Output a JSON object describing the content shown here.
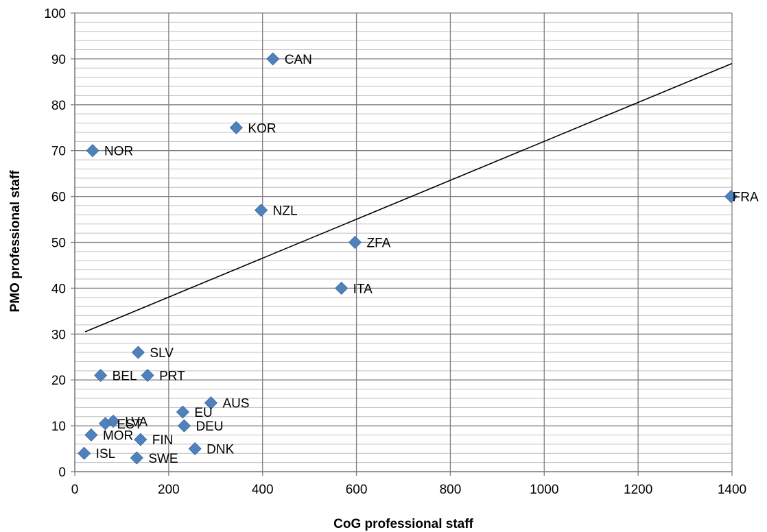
{
  "chart_data": {
    "type": "scatter",
    "xlabel": "CoG professional staff",
    "ylabel": "PMO professional staff",
    "xlim": [
      0,
      1400
    ],
    "ylim": [
      0,
      100
    ],
    "x_ticks": [
      0,
      200,
      400,
      600,
      800,
      1000,
      1200,
      1400
    ],
    "y_ticks": [
      0,
      10,
      20,
      30,
      40,
      50,
      60,
      70,
      80,
      90,
      100
    ],
    "minor_y_step": 2,
    "grid": true,
    "marker_color": "#4F81BD",
    "points": [
      {
        "label": "CAN",
        "x": 422,
        "y": 90
      },
      {
        "label": "KOR",
        "x": 344,
        "y": 75
      },
      {
        "label": "NOR",
        "x": 38,
        "y": 70
      },
      {
        "label": "FRA",
        "x": 1398,
        "y": 60
      },
      {
        "label": "NZL",
        "x": 397,
        "y": 57
      },
      {
        "label": "ZFA",
        "x": 597,
        "y": 50
      },
      {
        "label": "ITA",
        "x": 568,
        "y": 40
      },
      {
        "label": "SLV",
        "x": 135,
        "y": 26
      },
      {
        "label": "BEL",
        "x": 55,
        "y": 21
      },
      {
        "label": "PRT",
        "x": 155,
        "y": 21
      },
      {
        "label": "AUS",
        "x": 290,
        "y": 15
      },
      {
        "label": "EU",
        "x": 230,
        "y": 13
      },
      {
        "label": "EST",
        "x": 65,
        "y": 10.5
      },
      {
        "label": "LVA",
        "x": 82,
        "y": 11
      },
      {
        "label": "DEU",
        "x": 233,
        "y": 10
      },
      {
        "label": "MOR",
        "x": 35,
        "y": 8
      },
      {
        "label": "FIN",
        "x": 140,
        "y": 7
      },
      {
        "label": "DNK",
        "x": 256,
        "y": 5
      },
      {
        "label": "ISL",
        "x": 20,
        "y": 4
      },
      {
        "label": "SWE",
        "x": 132,
        "y": 3
      }
    ],
    "trendline": {
      "x": [
        22,
        1400
      ],
      "y": [
        30.5,
        89
      ]
    }
  }
}
